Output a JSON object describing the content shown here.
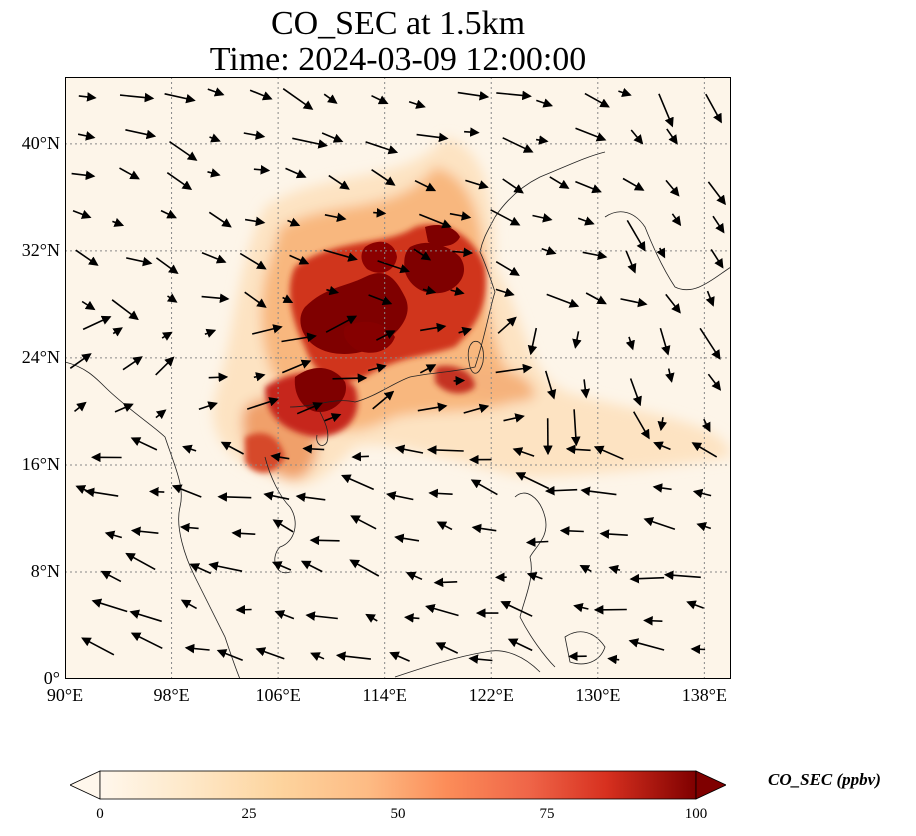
{
  "title": {
    "line1": "CO_SEC at 1.5km",
    "line2": "Time: 2024-03-09 12:00:00"
  },
  "map": {
    "lon_range": [
      90,
      140
    ],
    "lat_range": [
      0,
      45
    ],
    "lat_ticks": [
      {
        "value": 0,
        "label": "0°"
      },
      {
        "value": 8,
        "label": "8°N"
      },
      {
        "value": 16,
        "label": "16°N"
      },
      {
        "value": 24,
        "label": "24°N"
      },
      {
        "value": 32,
        "label": "32°N"
      },
      {
        "value": 40,
        "label": "40°N"
      }
    ],
    "lon_ticks": [
      {
        "value": 90,
        "label": "90°E"
      },
      {
        "value": 98,
        "label": "98°E"
      },
      {
        "value": 106,
        "label": "106°E"
      },
      {
        "value": 114,
        "label": "114°E"
      },
      {
        "value": 122,
        "label": "122°E"
      },
      {
        "value": 130,
        "label": "130°E"
      },
      {
        "value": 138,
        "label": "138°E"
      }
    ],
    "gridlines": true,
    "colormap": "OrRd",
    "colors": {
      "background": "#fdf5e9",
      "low": "#fdebcf",
      "mid": "#f3a467",
      "high": "#d0341f",
      "max": "#7f0000",
      "coast": "#222222",
      "arrow": "#000000"
    }
  },
  "colorbar": {
    "label": "CO_SEC (ppbv)",
    "min": 0,
    "max": 100,
    "ticks": [
      "0",
      "25",
      "50",
      "75",
      "100"
    ],
    "extend": "both"
  }
}
